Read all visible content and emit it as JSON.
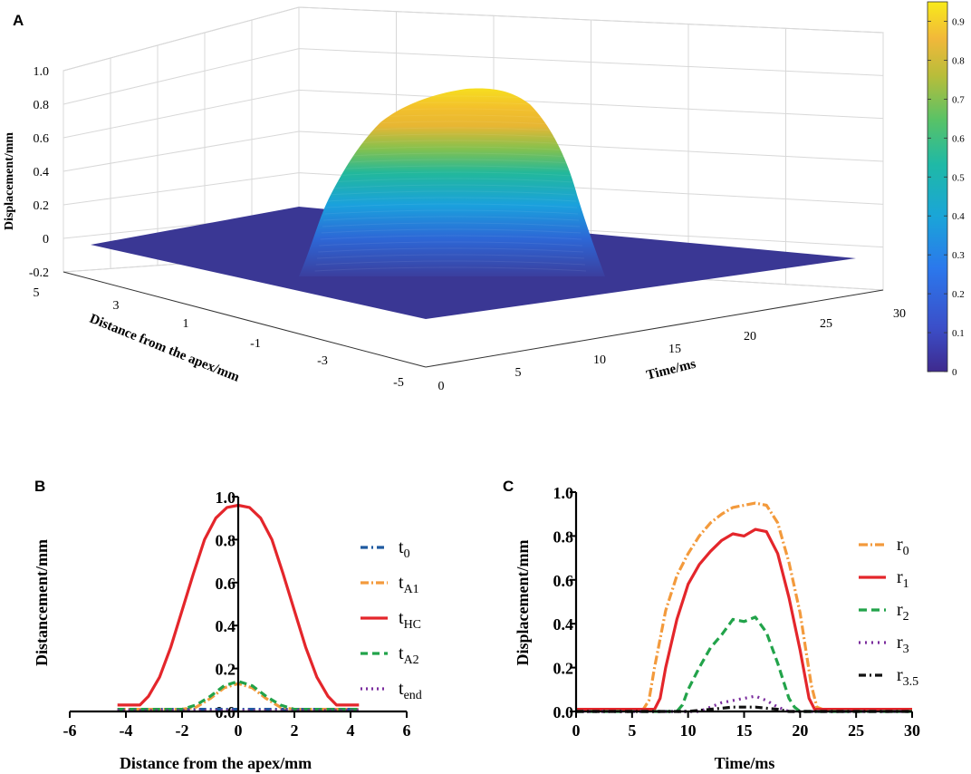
{
  "panel_labels": {
    "a": "A",
    "b": "B",
    "c": "C"
  },
  "colors": {
    "t0": "#1f5aa0",
    "tA1": "#f39a3c",
    "tHC": "#e4262b",
    "tA2": "#22a34a",
    "tend": "#7b2d9e",
    "r0": "#f39a3c",
    "r1": "#e4262b",
    "r2": "#22a34a",
    "r3": "#7b2d9e",
    "r35": "#111111",
    "surface_low": "#3b3596",
    "surface_high": "#f6e71d"
  },
  "chart_data": [
    {
      "id": "A",
      "type": "surface",
      "title": "",
      "zlabel": "Displacement/mm",
      "ylabel": "Distance from the apex/mm",
      "xlabel": "Time/ms",
      "z_ticks": [
        "-0.2",
        "0",
        "0.2",
        "0.4",
        "0.6",
        "0.8",
        "1.0"
      ],
      "y_ticks": [
        "5",
        "3",
        "1",
        "-1",
        "-3",
        "-5"
      ],
      "x_ticks": [
        "0",
        "5",
        "10",
        "15",
        "20",
        "25",
        "30"
      ],
      "zlim": [
        -0.2,
        1.0
      ],
      "xlim": [
        0,
        30
      ],
      "ylim": [
        -5,
        5
      ],
      "peak": 0.95,
      "colorbar": {
        "ticks": [
          "0",
          "0.1",
          "0.2",
          "0.3",
          "0.4",
          "0.5",
          "0.6",
          "0.7",
          "0.8",
          "0.9"
        ],
        "range": [
          0,
          0.95
        ]
      }
    },
    {
      "id": "B",
      "type": "line",
      "xlabel": "Distance from the apex/mm",
      "ylabel": "Distancement/mm",
      "x_ticks": [
        "-6",
        "-4",
        "-2",
        "0",
        "2",
        "4",
        "6"
      ],
      "y_ticks": [
        "0.0",
        "0.2",
        "0.4",
        "0.6",
        "0.8",
        "1.0"
      ],
      "xlim": [
        -6,
        6
      ],
      "ylim": [
        0,
        1.0
      ],
      "series": [
        {
          "name": "t",
          "sub": "0",
          "key": "t0",
          "dash": "8,4,2,4",
          "x": [
            -4.3,
            -3,
            -2,
            -1,
            0,
            1,
            2,
            3,
            4.3
          ],
          "y": [
            0.01,
            0.01,
            0.01,
            0.01,
            0.01,
            0.01,
            0.01,
            0.01,
            0.01
          ]
        },
        {
          "name": "t",
          "sub": "A1",
          "key": "tA1",
          "dash": "9,3,2,3",
          "x": [
            -4.3,
            -3,
            -2,
            -1.5,
            -1,
            -0.5,
            0,
            0.5,
            1,
            1.5,
            2,
            3,
            4.3
          ],
          "y": [
            0.01,
            0.01,
            0.01,
            0.02,
            0.06,
            0.11,
            0.13,
            0.11,
            0.06,
            0.02,
            0.01,
            0.01,
            0.01
          ]
        },
        {
          "name": "t",
          "sub": "HC",
          "key": "tHC",
          "dash": "",
          "x": [
            -4.3,
            -3.5,
            -3.2,
            -2.8,
            -2.4,
            -2,
            -1.6,
            -1.2,
            -0.8,
            -0.4,
            0,
            0.4,
            0.8,
            1.2,
            1.6,
            2,
            2.4,
            2.8,
            3.2,
            3.5,
            4.3
          ],
          "y": [
            0.03,
            0.03,
            0.07,
            0.16,
            0.3,
            0.47,
            0.64,
            0.8,
            0.9,
            0.95,
            0.96,
            0.95,
            0.9,
            0.8,
            0.64,
            0.47,
            0.3,
            0.16,
            0.07,
            0.03,
            0.03
          ]
        },
        {
          "name": "t",
          "sub": "A2",
          "key": "tA2",
          "dash": "8,5",
          "x": [
            -4.3,
            -3,
            -2,
            -1.5,
            -1,
            -0.5,
            0,
            0.5,
            1,
            1.5,
            2,
            3,
            4.3
          ],
          "y": [
            0.01,
            0.01,
            0.01,
            0.03,
            0.07,
            0.12,
            0.14,
            0.12,
            0.07,
            0.03,
            0.01,
            0.01,
            0.01
          ]
        },
        {
          "name": "t",
          "sub": "end",
          "key": "tend",
          "dash": "2,4",
          "x": [
            -4.3,
            -3,
            -2,
            -1,
            0,
            1,
            2,
            3,
            4.3
          ],
          "y": [
            0.005,
            0.005,
            0.005,
            0.005,
            0.005,
            0.005,
            0.005,
            0.005,
            0.005
          ]
        }
      ]
    },
    {
      "id": "C",
      "type": "line",
      "xlabel": "Time/ms",
      "ylabel": "Displacement/mm",
      "x_ticks": [
        "0",
        "5",
        "10",
        "15",
        "20",
        "25",
        "30"
      ],
      "y_ticks": [
        "0.0",
        "0.2",
        "0.4",
        "0.6",
        "0.8",
        "1.0"
      ],
      "xlim": [
        0,
        30
      ],
      "ylim": [
        0,
        1.0
      ],
      "series": [
        {
          "name": "r",
          "sub": "0",
          "key": "r0",
          "dash": "10,3,2,3",
          "x": [
            0,
            6,
            6.5,
            7,
            8,
            9,
            10,
            11,
            12,
            13,
            14,
            15,
            16,
            17,
            18,
            19,
            20,
            21,
            21.5,
            22,
            30
          ],
          "y": [
            0.01,
            0.01,
            0.05,
            0.2,
            0.46,
            0.62,
            0.72,
            0.8,
            0.86,
            0.9,
            0.93,
            0.94,
            0.95,
            0.94,
            0.86,
            0.68,
            0.45,
            0.12,
            0.02,
            0.01,
            0.01
          ]
        },
        {
          "name": "r",
          "sub": "1",
          "key": "r1",
          "dash": "",
          "x": [
            0,
            7,
            7.5,
            8,
            9,
            10,
            11,
            12,
            13,
            14,
            15,
            16,
            17,
            18,
            19,
            20,
            20.8,
            21.3,
            22,
            30
          ],
          "y": [
            0.01,
            0.01,
            0.06,
            0.2,
            0.42,
            0.58,
            0.67,
            0.73,
            0.78,
            0.81,
            0.8,
            0.83,
            0.82,
            0.72,
            0.52,
            0.28,
            0.06,
            0.01,
            0.01,
            0.01
          ]
        },
        {
          "name": "r",
          "sub": "2",
          "key": "r2",
          "dash": "9,5",
          "x": [
            0,
            9,
            9.5,
            10,
            11,
            12,
            13,
            14,
            15,
            16,
            17,
            18,
            19,
            19.5,
            20,
            30
          ],
          "y": [
            0.0,
            0.0,
            0.03,
            0.1,
            0.2,
            0.29,
            0.35,
            0.42,
            0.41,
            0.43,
            0.36,
            0.22,
            0.06,
            0.02,
            0.0,
            0.0
          ]
        },
        {
          "name": "r",
          "sub": "3",
          "key": "r3",
          "dash": "2,5",
          "x": [
            0,
            11,
            12,
            13,
            14,
            15,
            16,
            17,
            18,
            19,
            30
          ],
          "y": [
            0.0,
            0.0,
            0.02,
            0.04,
            0.05,
            0.06,
            0.07,
            0.05,
            0.02,
            0.0,
            0.0
          ]
        },
        {
          "name": "r",
          "sub": "3.5",
          "key": "r35",
          "dash": "8,4,2,4",
          "x": [
            0,
            10,
            12,
            14,
            16,
            18,
            19,
            30
          ],
          "y": [
            0.0,
            0.0,
            0.01,
            0.02,
            0.02,
            0.01,
            0.0,
            0.0
          ]
        }
      ]
    }
  ]
}
